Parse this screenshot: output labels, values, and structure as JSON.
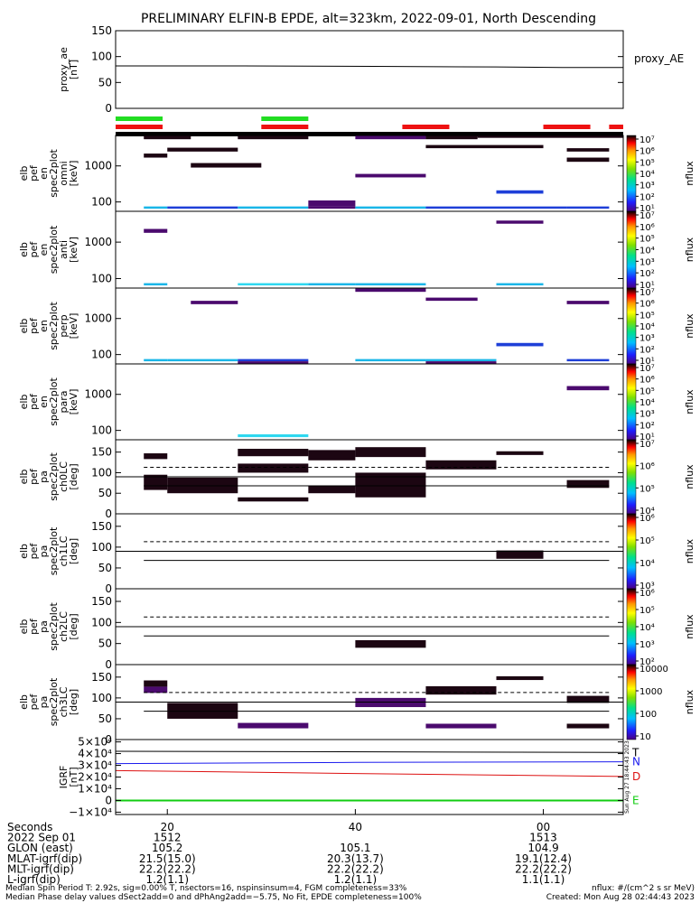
{
  "title": "PRELIMINARY ELFIN-B EPDE, alt=323km, 2022-09-01, North Descending",
  "colors": {
    "axis": "#000000",
    "green_bar": "#22dd22",
    "red_bar": "#ee1111",
    "grf_n": "#1a1aee",
    "grf_d": "#dd1111",
    "grf_e": "#11cc11"
  },
  "chart_data": [
    {
      "type": "line",
      "id": "proxy_ae",
      "ylabel_lines": [
        "proxy_ae",
        "[nT]"
      ],
      "side_label": "proxy_AE",
      "yticks": [
        "150",
        "100",
        "50",
        "0"
      ],
      "ylim": [
        0,
        150
      ],
      "series": [
        {
          "x": [
            14.5,
            28,
            42,
            55,
            62,
            68.5
          ],
          "values": [
            82,
            82,
            81,
            80,
            79,
            79
          ]
        }
      ]
    },
    {
      "type": "heatmap",
      "id": "pef_en_spec2plot_omni",
      "ylabel_lines": [
        "elb",
        "pef",
        "en",
        "spec2plot",
        "omni",
        "[keV]"
      ],
      "yticks": [
        "1000",
        "100"
      ],
      "ylim_log": [
        55,
        7000
      ],
      "colorbar": {
        "label": "nflux",
        "ticks": [
          "10⁷",
          "10⁶",
          "10⁵",
          "10⁴",
          "10³",
          "10²",
          "10¹"
        ]
      }
    },
    {
      "type": "heatmap",
      "id": "pef_en_spec2plot_anti",
      "ylabel_lines": [
        "elb",
        "pef",
        "en",
        "spec2plot",
        "anti",
        "[keV]"
      ],
      "yticks": [
        "1000",
        "100"
      ],
      "ylim_log": [
        55,
        7000
      ],
      "colorbar": {
        "label": "nflux",
        "ticks": [
          "10⁷",
          "10⁶",
          "10⁵",
          "10⁴",
          "10³",
          "10²",
          "10¹"
        ]
      }
    },
    {
      "type": "heatmap",
      "id": "pef_en_spec2plot_perp",
      "ylabel_lines": [
        "elb",
        "pef",
        "en",
        "spec2plot",
        "perp",
        "[keV]"
      ],
      "yticks": [
        "1000",
        "100"
      ],
      "ylim_log": [
        55,
        7000
      ],
      "colorbar": {
        "label": "nflux",
        "ticks": [
          "10⁷",
          "10⁶",
          "10⁵",
          "10⁴",
          "10³",
          "10²",
          "10¹"
        ]
      }
    },
    {
      "type": "heatmap",
      "id": "pef_en_spec2plot_para",
      "ylabel_lines": [
        "elb",
        "pef",
        "en",
        "spec2plot",
        "para",
        "[keV]"
      ],
      "yticks": [
        "1000",
        "100"
      ],
      "ylim_log": [
        55,
        7000
      ],
      "colorbar": {
        "label": "nflux",
        "ticks": [
          "10⁷",
          "10⁶",
          "10⁵",
          "10⁴",
          "10³",
          "10²",
          "10¹"
        ]
      }
    },
    {
      "type": "heatmap",
      "id": "pef_pa_spec2plot_ch0LC",
      "ylabel_lines": [
        "elb",
        "pef",
        "pa",
        "spec2plot",
        "ch0LC",
        "[deg]"
      ],
      "yticks": [
        "150",
        "100",
        "50",
        "0"
      ],
      "ylim": [
        0,
        180
      ],
      "colorbar": {
        "label": "nflux",
        "ticks": [
          "10⁷",
          "10⁶",
          "10⁵",
          "10⁴"
        ]
      }
    },
    {
      "type": "heatmap",
      "id": "pef_pa_spec2plot_ch1LC",
      "ylabel_lines": [
        "elb",
        "pef",
        "pa",
        "spec2plot",
        "ch1LC",
        "[deg]"
      ],
      "yticks": [
        "150",
        "100",
        "50",
        "0"
      ],
      "ylim": [
        0,
        180
      ],
      "colorbar": {
        "label": "nflux",
        "ticks": [
          "10⁶",
          "10⁵",
          "10⁴",
          "10³"
        ]
      }
    },
    {
      "type": "heatmap",
      "id": "pef_pa_spec2plot_ch2LC",
      "ylabel_lines": [
        "elb",
        "pef",
        "pa",
        "spec2plot",
        "ch2LC",
        "[deg]"
      ],
      "yticks": [
        "150",
        "100",
        "50",
        "0"
      ],
      "ylim": [
        0,
        180
      ],
      "colorbar": {
        "label": "nflux",
        "ticks": [
          "10⁶",
          "10⁵",
          "10⁴",
          "10³",
          "10²"
        ]
      }
    },
    {
      "type": "heatmap",
      "id": "pef_pa_spec2plot_ch3LC",
      "ylabel_lines": [
        "elb",
        "pef",
        "pa",
        "spec2plot",
        "ch3LC",
        "[deg]"
      ],
      "yticks": [
        "150",
        "100",
        "50",
        "0"
      ],
      "ylim": [
        0,
        180
      ],
      "colorbar": {
        "label": "nflux",
        "ticks": [
          "10000",
          "1000",
          "100",
          "10"
        ]
      }
    },
    {
      "type": "line",
      "id": "igrf",
      "ylabel_lines": [
        "IGRF",
        "[nT]"
      ],
      "yticks": [
        "5×10⁴",
        "4×10⁴",
        "3×10⁴",
        "2×10⁴",
        "1×10⁴",
        "0",
        "−1×10⁴"
      ],
      "ylim": [
        -12000,
        52000
      ],
      "side_text": "Sun Aug 27 18:44:43 2023",
      "series": [
        {
          "name": "T",
          "x": [
            14.5,
            68.5
          ],
          "values": [
            42000,
            41000
          ]
        },
        {
          "name": "N",
          "x": [
            14.5,
            40,
            68.5
          ],
          "values": [
            31500,
            32500,
            33000
          ]
        },
        {
          "name": "D",
          "x": [
            14.5,
            40,
            68.5
          ],
          "values": [
            25500,
            23000,
            20500
          ]
        },
        {
          "name": "E",
          "x": [
            14.5,
            68.5
          ],
          "values": [
            0,
            0
          ]
        }
      ]
    }
  ],
  "xaxis": {
    "row_labels": [
      "Seconds",
      "2022 Sep 01",
      "GLON (east)",
      "MLAT-igrf(dip)",
      "MLT-igrf(dip)",
      "L-igrf(dip)"
    ],
    "ticks": [
      {
        "x": 20,
        "values": [
          "20",
          "1512",
          "105.2",
          "21.5(15.0)",
          "22.2(22.2)",
          "1.2(1.1)"
        ]
      },
      {
        "x": 40,
        "values": [
          "40",
          "",
          "105.1",
          "20.3(13.7)",
          "22.2(22.2)",
          "1.2(1.1)"
        ]
      },
      {
        "x": 60,
        "values": [
          "00",
          "1513",
          "104.9",
          "19.1(12.4)",
          "22.2(22.2)",
          "1.1(1.1)"
        ]
      }
    ]
  },
  "footer": {
    "line1_left": "Median Spin Period T: 2.92s, sig=0.00% T, nsectors=16, nspinsinsum=4, FGM completeness=33%",
    "line1_right": "nflux: #/(cm^2 s sr MeV)",
    "line2_left": "Median Phase delay values dSect2add=0 and dPhAng2add=−5.75, No Fit, EPDE completeness=100%",
    "line2_right": "Created: Mon Aug 28 02:44:43 2023"
  }
}
